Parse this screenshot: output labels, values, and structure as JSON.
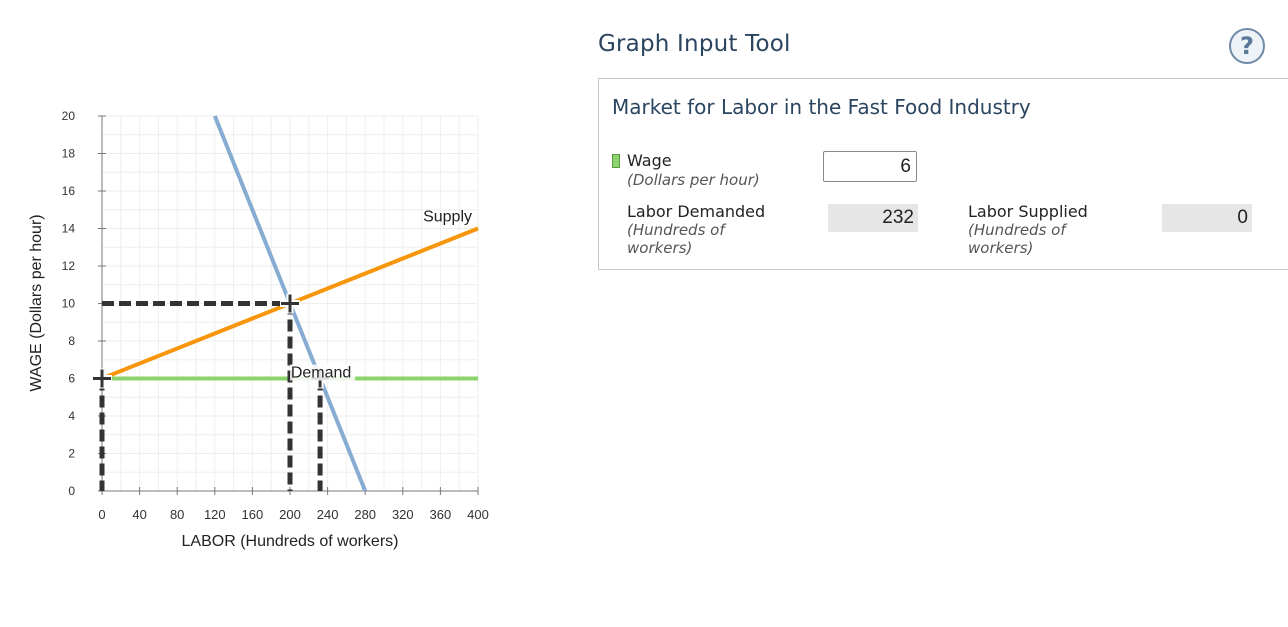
{
  "tool": {
    "title": "Graph Input Tool",
    "help_label": "?"
  },
  "panel": {
    "title": "Market for Labor in the Fast Food Industry",
    "wage_label": "Wage",
    "wage_unit": "(Dollars per hour)",
    "wage_value": "6",
    "demanded_label": "Labor Demanded",
    "demanded_unit_line1": "(Hundreds of",
    "demanded_unit_line2": "workers)",
    "demanded_value": "232",
    "supplied_label": "Labor Supplied",
    "supplied_unit_line1": "(Hundreds of",
    "supplied_unit_line2": "workers)",
    "supplied_value": "0"
  },
  "chart_data": {
    "type": "line",
    "title": "",
    "xlabel": "LABOR (Hundreds of workers)",
    "ylabel": "WAGE (Dollars per hour)",
    "xlim": [
      0,
      400
    ],
    "ylim": [
      0,
      20
    ],
    "xticks": [
      0,
      40,
      80,
      120,
      160,
      200,
      240,
      280,
      320,
      360,
      400
    ],
    "yticks": [
      0,
      2,
      4,
      6,
      8,
      10,
      12,
      14,
      16,
      18,
      20
    ],
    "grid": true,
    "series": [
      {
        "name": "Demand",
        "color": "#87acd2",
        "points": [
          [
            120,
            20
          ],
          [
            280,
            0
          ]
        ]
      },
      {
        "name": "Supply",
        "color": "#f7960a",
        "points": [
          [
            0,
            6
          ],
          [
            400,
            14
          ]
        ]
      }
    ],
    "wage_line": {
      "y": 6,
      "x_range": [
        0,
        400
      ],
      "color": "#8bd46b"
    },
    "guides": [
      {
        "points": [
          [
            0,
            10
          ],
          [
            200,
            10
          ],
          [
            200,
            0
          ]
        ]
      },
      {
        "points": [
          [
            0,
            6
          ],
          [
            0,
            0
          ]
        ]
      },
      {
        "points": [
          [
            232,
            6
          ],
          [
            232,
            0
          ]
        ]
      }
    ],
    "markers": [
      {
        "x": 200,
        "y": 10
      },
      {
        "x": 0,
        "y": 6
      },
      {
        "x": 232,
        "y": 6
      }
    ],
    "annotations": [
      {
        "text": "Supply",
        "x": 400,
        "y": 14
      },
      {
        "text": "Demand",
        "x": 232,
        "y": 6
      }
    ]
  }
}
